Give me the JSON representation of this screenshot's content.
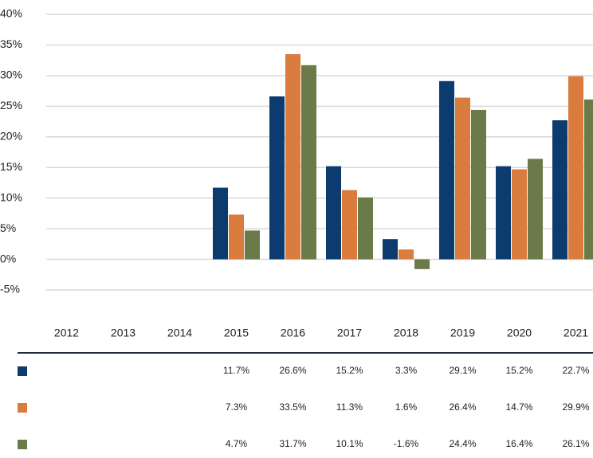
{
  "chart_data": {
    "type": "bar",
    "categories": [
      "2012",
      "2013",
      "2014",
      "2015",
      "2016",
      "2017",
      "2018",
      "2019",
      "2020",
      "2021"
    ],
    "series": [
      {
        "color": "#0c3b6f",
        "values": [
          null,
          null,
          null,
          11.7,
          26.6,
          15.2,
          3.3,
          29.1,
          15.2,
          22.7
        ],
        "value_labels": [
          null,
          null,
          null,
          "11.7%",
          "26.6%",
          "15.2%",
          "3.3%",
          "29.1%",
          "15.2%",
          "22.7%"
        ]
      },
      {
        "color": "#d97c3e",
        "values": [
          null,
          null,
          null,
          7.3,
          33.5,
          11.3,
          1.6,
          26.4,
          14.7,
          29.9
        ],
        "value_labels": [
          null,
          null,
          null,
          "7.3%",
          "33.5%",
          "11.3%",
          "1.6%",
          "26.4%",
          "14.7%",
          "29.9%"
        ]
      },
      {
        "color": "#6a7a48",
        "values": [
          null,
          null,
          null,
          4.7,
          31.7,
          10.1,
          -1.6,
          24.4,
          16.4,
          26.1
        ],
        "value_labels": [
          null,
          null,
          null,
          "4.7%",
          "31.7%",
          "10.1%",
          "-1.6%",
          "24.4%",
          "16.4%",
          "26.1%"
        ]
      }
    ],
    "ylim": [
      -5,
      40
    ],
    "yticks": [
      {
        "value": -5,
        "label": "-5%"
      },
      {
        "value": 0,
        "label": "0%"
      },
      {
        "value": 5,
        "label": "5%"
      },
      {
        "value": 10,
        "label": "10%"
      },
      {
        "value": 15,
        "label": "15%"
      },
      {
        "value": 20,
        "label": "20%"
      },
      {
        "value": 25,
        "label": "25%"
      },
      {
        "value": 30,
        "label": "30%"
      },
      {
        "value": 35,
        "label": "35%"
      },
      {
        "value": 40,
        "label": "40%"
      }
    ],
    "grid": true
  }
}
